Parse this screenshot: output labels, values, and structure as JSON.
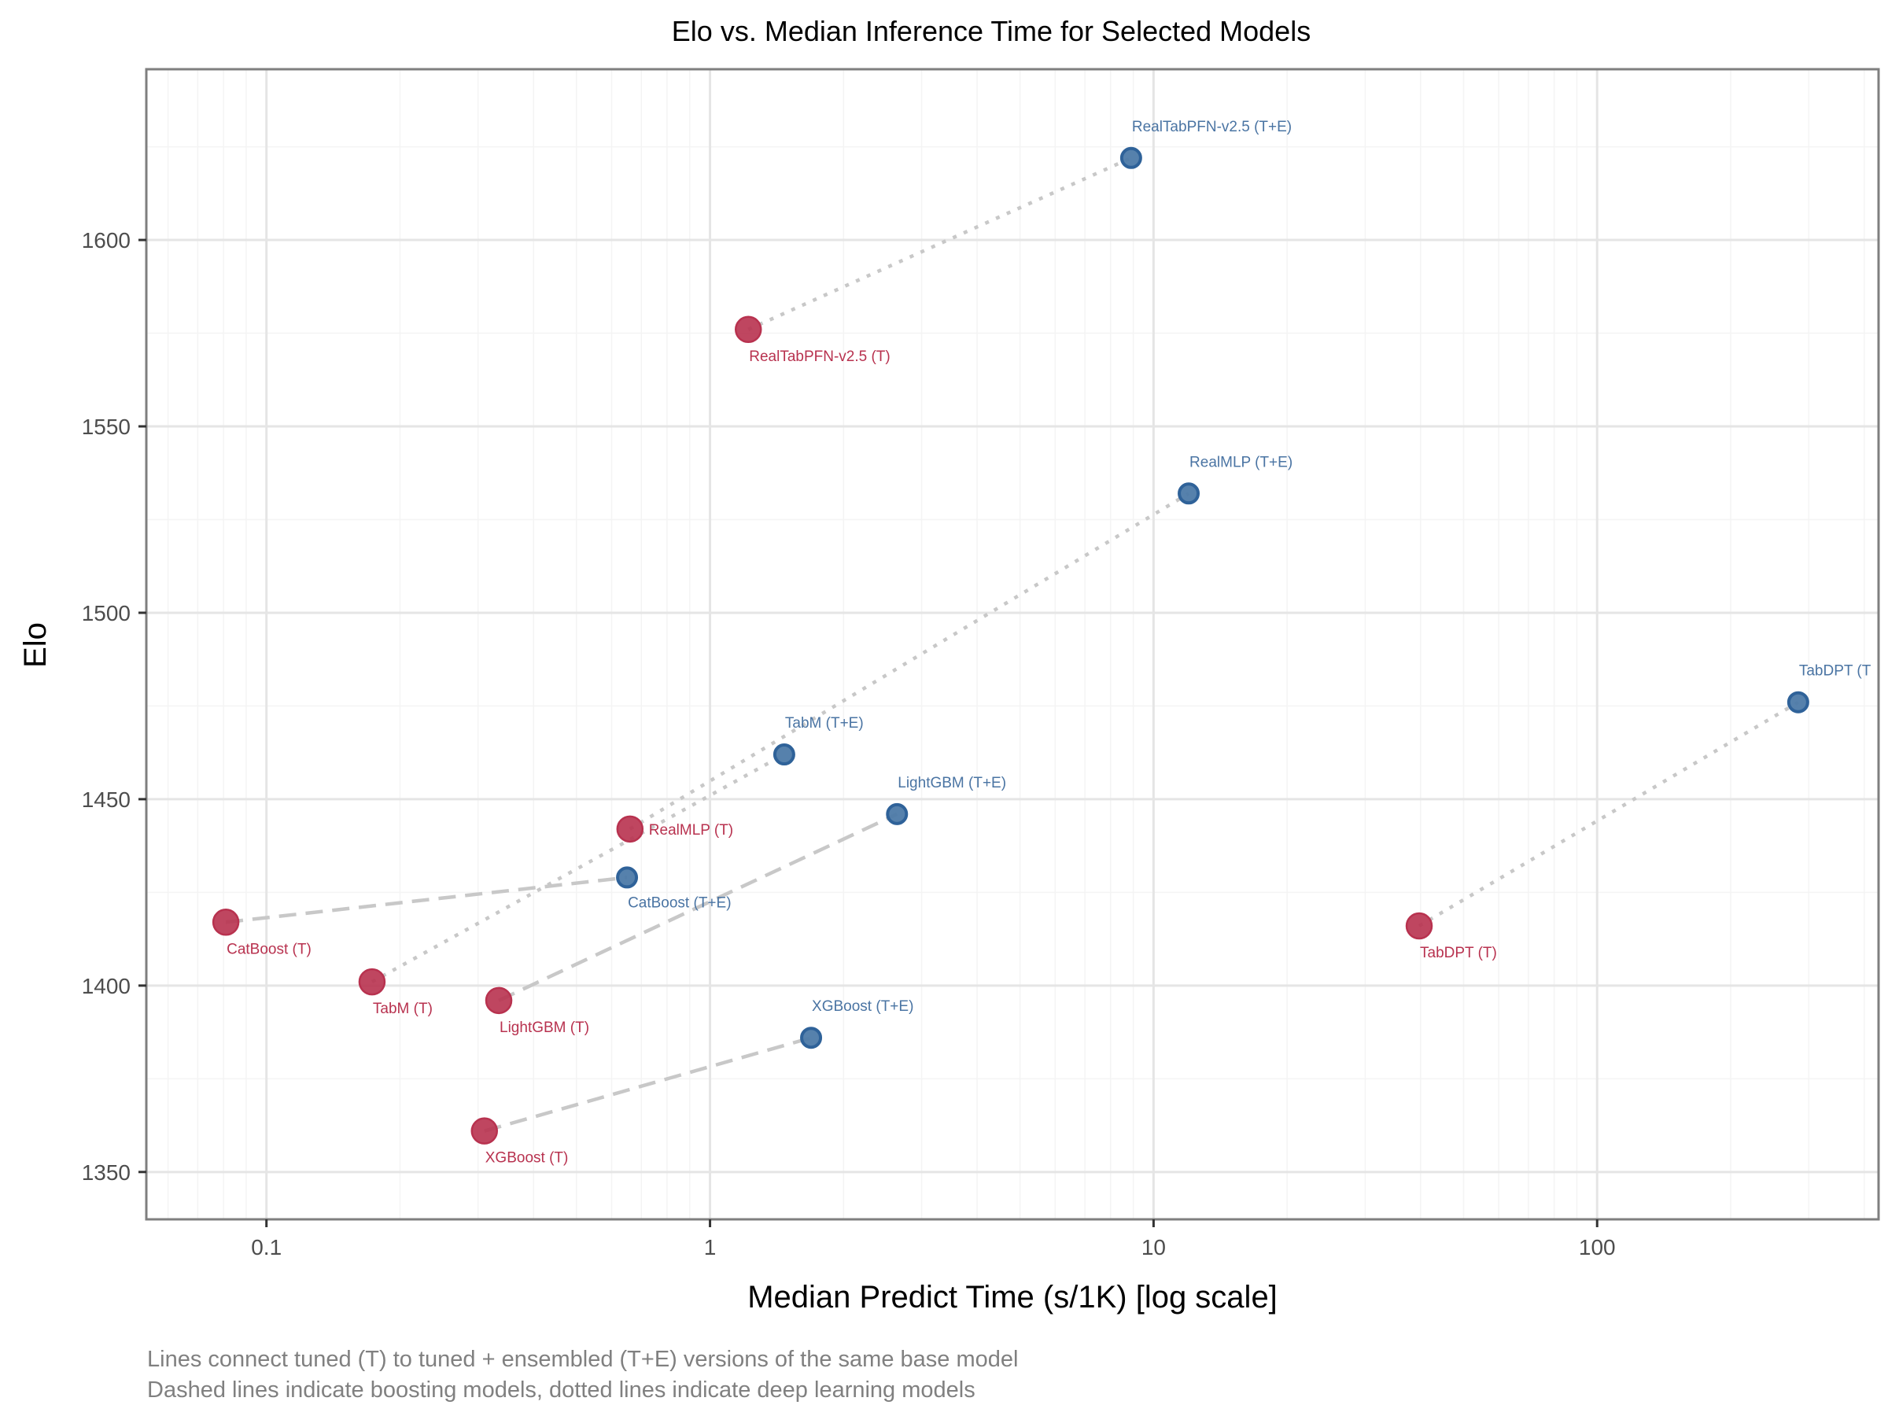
{
  "chart_data": {
    "type": "scatter",
    "title": "Elo vs. Median Inference Time for Selected Models",
    "xlabel": "Median Predict Time (s/1K) [log scale]",
    "ylabel": "Elo",
    "x_scale": "log",
    "xlim": [
      0.0536,
      431
    ],
    "ylim": [
      1337.3,
      1645.8
    ],
    "x_ticks": [
      {
        "value": 0.1,
        "label": "0.1"
      },
      {
        "value": 1,
        "label": "1"
      },
      {
        "value": 10,
        "label": "10"
      },
      {
        "value": 100,
        "label": "100"
      }
    ],
    "y_ticks": [
      {
        "value": 1350,
        "label": "1350"
      },
      {
        "value": 1400,
        "label": "1400"
      },
      {
        "value": 1450,
        "label": "1450"
      },
      {
        "value": 1500,
        "label": "1500"
      },
      {
        "value": 1550,
        "label": "1550"
      },
      {
        "value": 1600,
        "label": "1600"
      }
    ],
    "grid": true,
    "colors": {
      "tuned": "#b8324f",
      "tuned_ensembled": "#2f6299",
      "connector": "#c8c8c8",
      "panel_border": "#7f7f7f",
      "grid_major": "#e5e5e5",
      "grid_minor": "#f4f4f4"
    },
    "series": [
      {
        "name": "Tuned (T)",
        "key": "tuned",
        "points": [
          {
            "model": "RealTabPFN-v2.5",
            "label": "RealTabPFN-v2.5 (T)",
            "x": 1.22,
            "y": 1576
          },
          {
            "model": "RealMLP",
            "label": "RealMLP (T)",
            "x": 0.66,
            "y": 1442
          },
          {
            "model": "CatBoost",
            "label": "CatBoost (T)",
            "x": 0.081,
            "y": 1417
          },
          {
            "model": "TabM",
            "label": "TabM (T)",
            "x": 0.173,
            "y": 1401
          },
          {
            "model": "LightGBM",
            "label": "LightGBM (T)",
            "x": 0.334,
            "y": 1396
          },
          {
            "model": "TabDPT",
            "label": "TabDPT (T)",
            "x": 39.7,
            "y": 1416
          },
          {
            "model": "XGBoost",
            "label": "XGBoost (T)",
            "x": 0.31,
            "y": 1361
          }
        ]
      },
      {
        "name": "Tuned + Ensembled (T+E)",
        "key": "tuned_ensembled",
        "points": [
          {
            "model": "RealTabPFN-v2.5",
            "label": "RealTabPFN-v2.5 (T+E)",
            "x": 8.9,
            "y": 1622
          },
          {
            "model": "RealMLP",
            "label": "RealMLP (T+E)",
            "x": 12.0,
            "y": 1532
          },
          {
            "model": "TabDPT",
            "label": "TabDPT (T",
            "x": 284,
            "y": 1476
          },
          {
            "model": "TabM",
            "label": "TabM (T+E)",
            "x": 1.47,
            "y": 1462
          },
          {
            "model": "LightGBM",
            "label": "LightGBM (T+E)",
            "x": 2.64,
            "y": 1446
          },
          {
            "model": "CatBoost",
            "label": "CatBoost (T+E)",
            "x": 0.65,
            "y": 1429
          },
          {
            "model": "XGBoost",
            "label": "XGBoost (T+E)",
            "x": 1.69,
            "y": 1386
          }
        ]
      }
    ],
    "connectors": [
      {
        "model": "RealTabPFN-v2.5",
        "style": "dotted",
        "kind": "deep learning"
      },
      {
        "model": "RealMLP",
        "style": "dotted",
        "kind": "deep learning"
      },
      {
        "model": "TabDPT",
        "style": "dotted",
        "kind": "deep learning"
      },
      {
        "model": "TabM",
        "style": "dotted",
        "kind": "deep learning"
      },
      {
        "model": "LightGBM",
        "style": "dashed",
        "kind": "boosting"
      },
      {
        "model": "CatBoost",
        "style": "dashed",
        "kind": "boosting"
      },
      {
        "model": "XGBoost",
        "style": "dashed",
        "kind": "boosting"
      }
    ],
    "caption": [
      "Lines connect tuned (T) to tuned + ensembled (T+E) versions of the same base model",
      "Dashed lines indicate boosting models, dotted lines indicate deep learning models"
    ]
  }
}
